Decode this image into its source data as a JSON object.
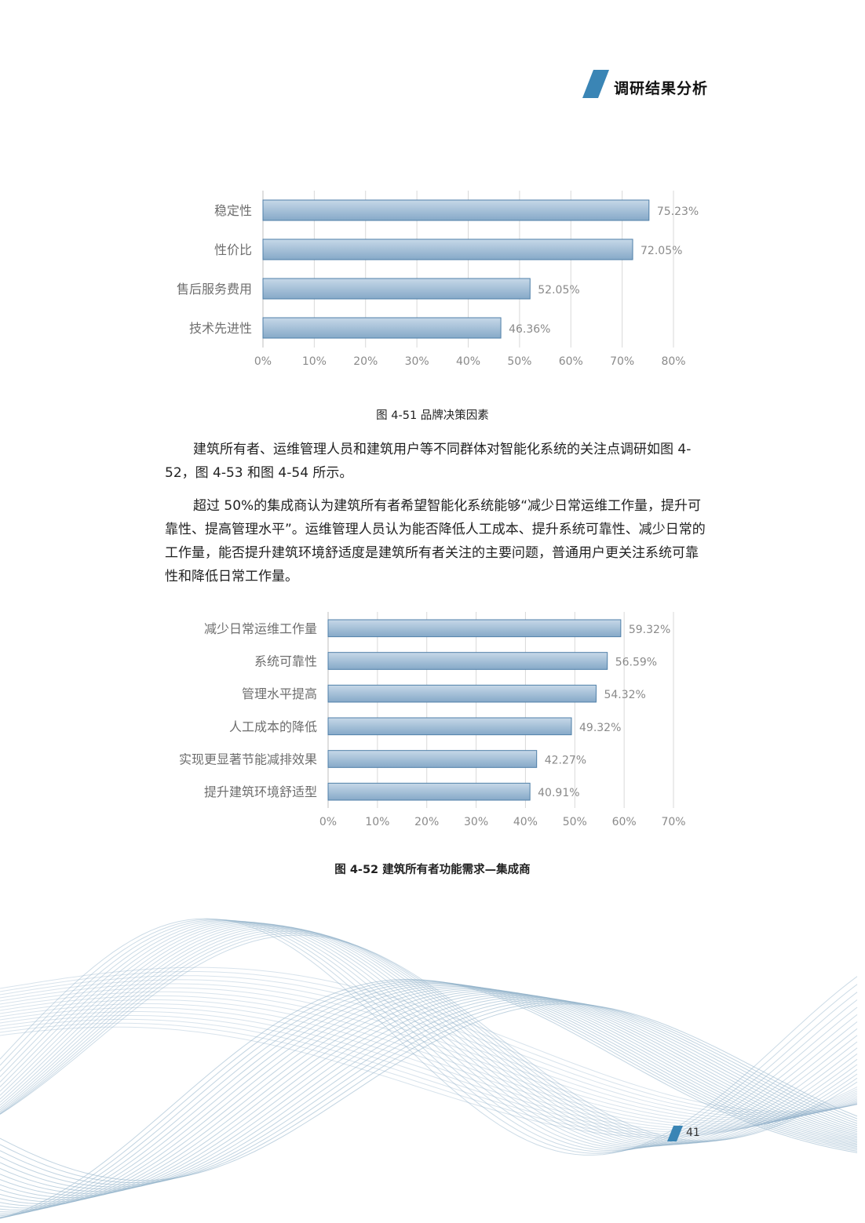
{
  "header": {
    "title": "调研结果分析"
  },
  "paragraphs": {
    "p1": "建筑所有者、运维管理人员和建筑用户等不同群体对智能化系统的关注点调研如图 4-52，图 4-53 和图 4-54 所示。",
    "p2": "超过 50%的集成商认为建筑所有者希望智能化系统能够“减少日常运维工作量，提升可靠性、提高管理水平”。运维管理人员认为能否降低人工成本、提升系统可靠性、减少日常的工作量，能否提升建筑环境舒适度是建筑所有者关注的主要问题，普通用户更关注系统可靠性和降低日常工作量。"
  },
  "captions": {
    "fig1": "图 4-51 品牌决策因素",
    "fig2": "图 4-52 建筑所有者功能需求—集成商"
  },
  "page_number": "41",
  "colors": {
    "accent": "#3a85b5",
    "bar_top": "#c6d8e8",
    "bar_bottom": "#86a9c8",
    "bar_stroke": "#4f7fa8",
    "wave": "#8fb0c8"
  },
  "chart_data": [
    {
      "type": "bar",
      "orientation": "horizontal",
      "categories": [
        "稳定性",
        "性价比",
        "售后服务费用",
        "技术先进性"
      ],
      "values": [
        75.23,
        72.05,
        52.05,
        46.36
      ],
      "value_labels": [
        "75.23%",
        "72.05%",
        "52.05%",
        "46.36%"
      ],
      "xlim": [
        0,
        80
      ],
      "x_ticks": [
        "0%",
        "10%",
        "20%",
        "30%",
        "40%",
        "50%",
        "60%",
        "70%",
        "80%"
      ],
      "grid": "vertical"
    },
    {
      "type": "bar",
      "orientation": "horizontal",
      "categories": [
        "减少日常运维工作量",
        "系统可靠性",
        "管理水平提高",
        "人工成本的降低",
        "实现更显著节能减排效果",
        "提升建筑环境舒适型"
      ],
      "values": [
        59.32,
        56.59,
        54.32,
        49.32,
        42.27,
        40.91
      ],
      "value_labels": [
        "59.32%",
        "56.59%",
        "54.32%",
        "49.32%",
        "42.27%",
        "40.91%"
      ],
      "xlim": [
        0,
        70
      ],
      "x_ticks": [
        "0%",
        "10%",
        "20%",
        "30%",
        "40%",
        "50%",
        "60%",
        "70%"
      ],
      "grid": "vertical"
    }
  ]
}
